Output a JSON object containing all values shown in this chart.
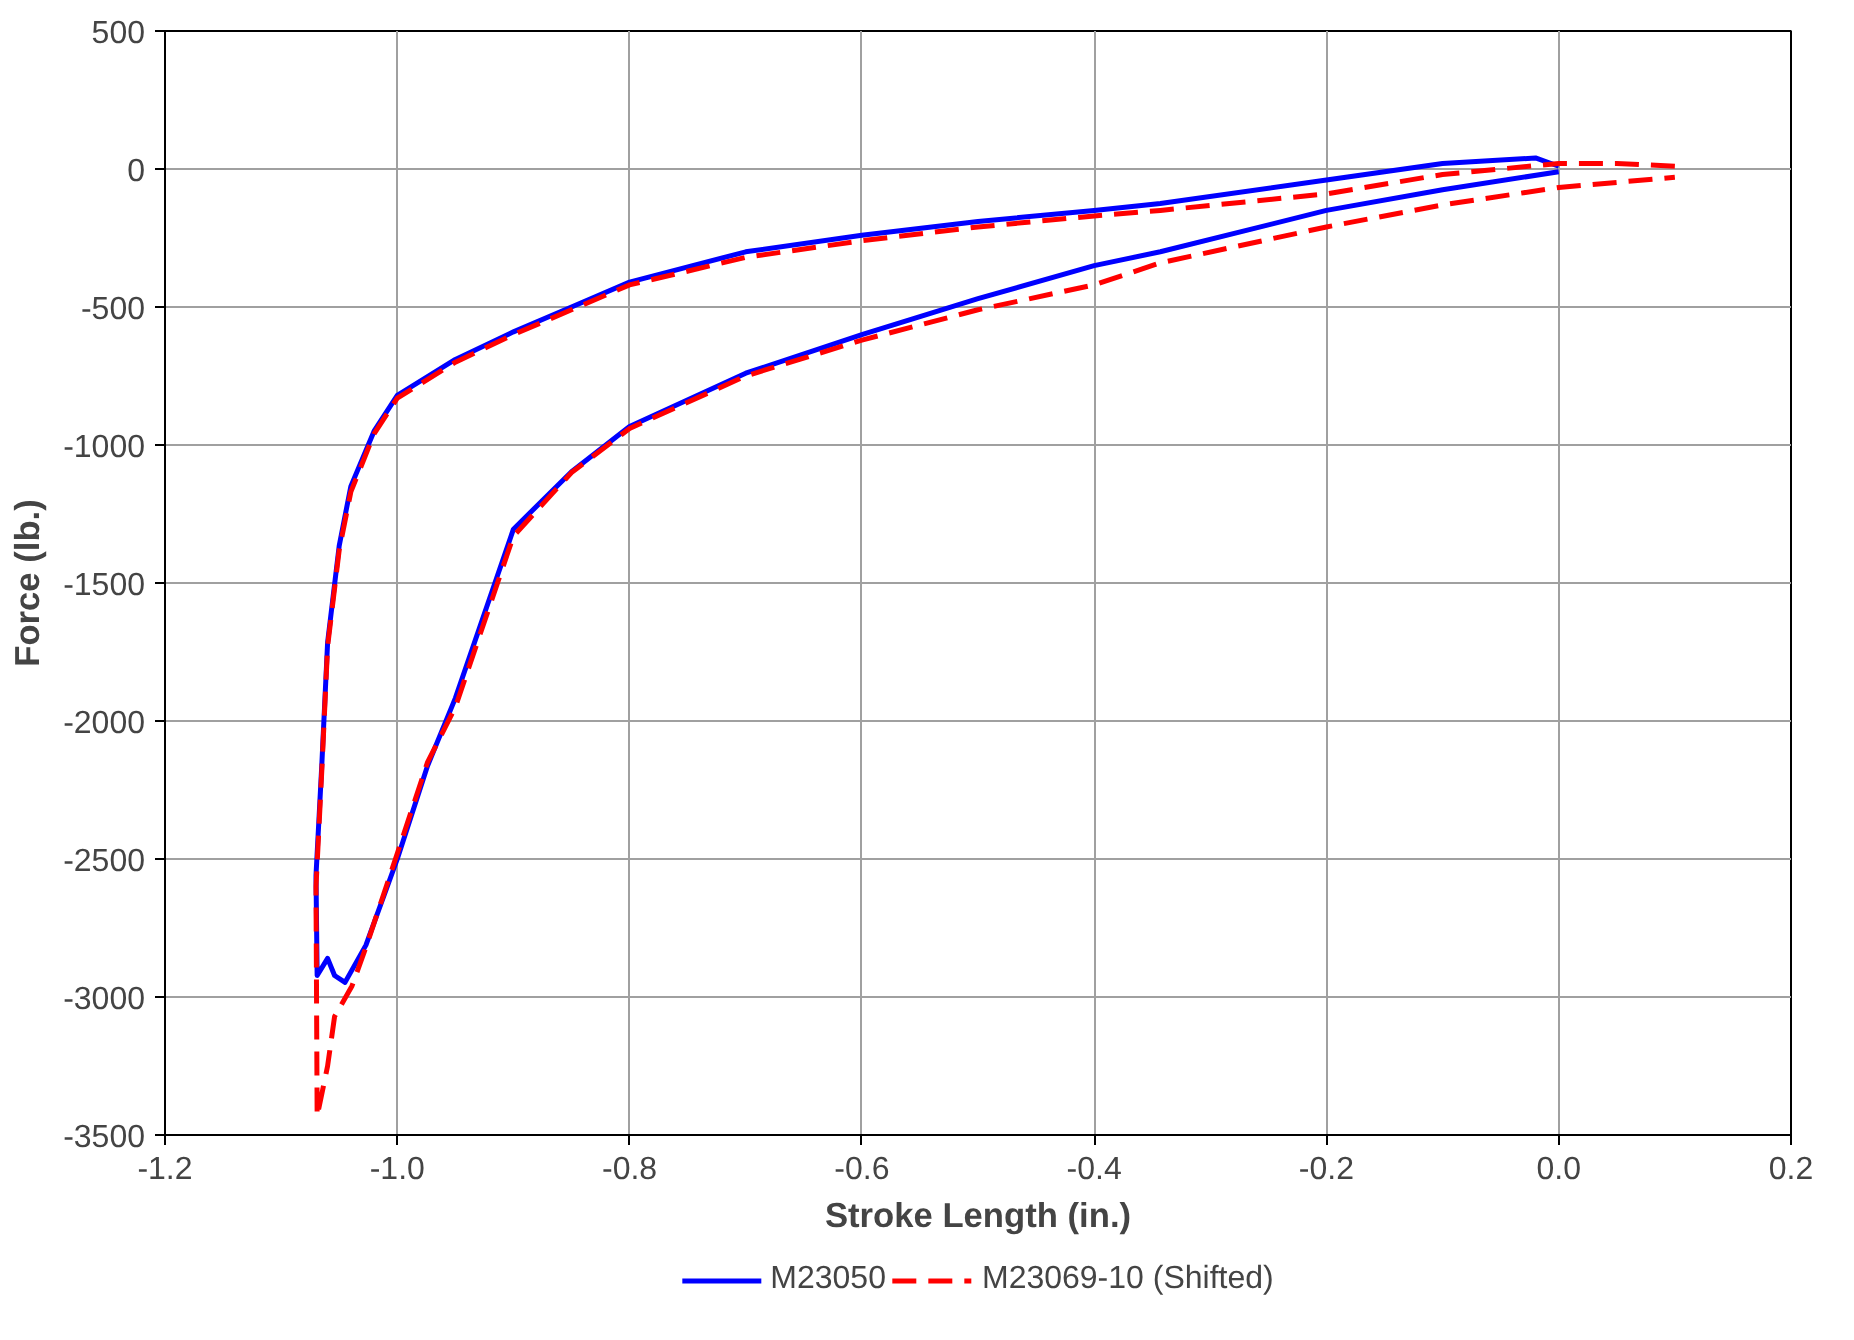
{
  "chart_data": {
    "type": "line",
    "xlabel": "Stroke Length (in.)",
    "ylabel": "Force (lb.)",
    "xlim": [
      -1.2,
      0.2
    ],
    "xticks": [
      {
        "value": -1.2,
        "label": "-1.2"
      },
      {
        "value": -1.0,
        "label": "-1.0"
      },
      {
        "value": -0.8,
        "label": "-0.8"
      },
      {
        "value": -0.6,
        "label": "-0.6"
      },
      {
        "value": -0.4,
        "label": "-0.4"
      },
      {
        "value": -0.2,
        "label": "-0.2"
      },
      {
        "value": 0.0,
        "label": "0.0"
      },
      {
        "value": 0.2,
        "label": "0.2"
      }
    ],
    "ylim": [
      -3500,
      500
    ],
    "yticks": [
      -3500,
      -3000,
      -2500,
      -2000,
      -1500,
      -1000,
      -500,
      0,
      500
    ],
    "grid": true,
    "legend": "bottom",
    "marker": "none",
    "series": [
      {
        "name": "M23050",
        "color": "#0000ff",
        "line_style": "solid",
        "x": [
          0.0,
          -0.02,
          -0.1,
          -0.2,
          -0.343,
          -0.4,
          -0.5,
          -0.6,
          -0.7,
          -0.8,
          -0.85,
          -0.9,
          -0.95,
          -1.0,
          -1.02,
          -1.04,
          -1.05,
          -1.06,
          -1.065,
          -1.07,
          -1.069,
          -1.06,
          -1.054,
          -1.045,
          -1.027,
          -1.0,
          -0.974,
          -0.95,
          -0.9,
          -0.85,
          -0.8,
          -0.7,
          -0.6,
          -0.5,
          -0.4,
          -0.343,
          -0.2,
          -0.1,
          0.0
        ],
        "values": [
          10,
          40,
          20,
          -40,
          -125,
          -150,
          -190,
          -240,
          -300,
          -410,
          -500,
          -590,
          -690,
          -820,
          -950,
          -1150,
          -1365,
          -1716,
          -2160,
          -2560,
          -2922,
          -2860,
          -2922,
          -2947,
          -2812,
          -2500,
          -2163,
          -1917,
          -1305,
          -1097,
          -933,
          -740,
          -600,
          -470,
          -350,
          -300,
          -150,
          -75,
          -10
        ]
      },
      {
        "name": "M23069-10 (Shifted)",
        "color": "#ff0000",
        "line_style": "dashed",
        "x": [
          0.1,
          0.05,
          0.0,
          -0.1,
          -0.2,
          -0.343,
          -0.4,
          -0.5,
          -0.6,
          -0.7,
          -0.8,
          -0.85,
          -0.9,
          -0.95,
          -1.0,
          -1.02,
          -1.04,
          -1.05,
          -1.06,
          -1.065,
          -1.07,
          -1.069,
          -1.06,
          -1.054,
          -1.039,
          -1.027,
          -1.0,
          -0.974,
          -0.95,
          -0.9,
          -0.85,
          -0.8,
          -0.7,
          -0.6,
          -0.5,
          -0.4,
          -0.343,
          -0.2,
          -0.1,
          0.0,
          0.1
        ],
        "values": [
          10,
          20,
          20,
          -20,
          -90,
          -150,
          -170,
          -210,
          -260,
          -320,
          -420,
          -510,
          -600,
          -700,
          -830,
          -960,
          -1170,
          -1380,
          -1730,
          -2180,
          -2600,
          -3432,
          -3250,
          -3071,
          -2960,
          -2820,
          -2480,
          -2150,
          -1950,
          -1330,
          -1100,
          -940,
          -750,
          -620,
          -510,
          -420,
          -340,
          -210,
          -130,
          -67,
          -30
        ]
      }
    ]
  }
}
